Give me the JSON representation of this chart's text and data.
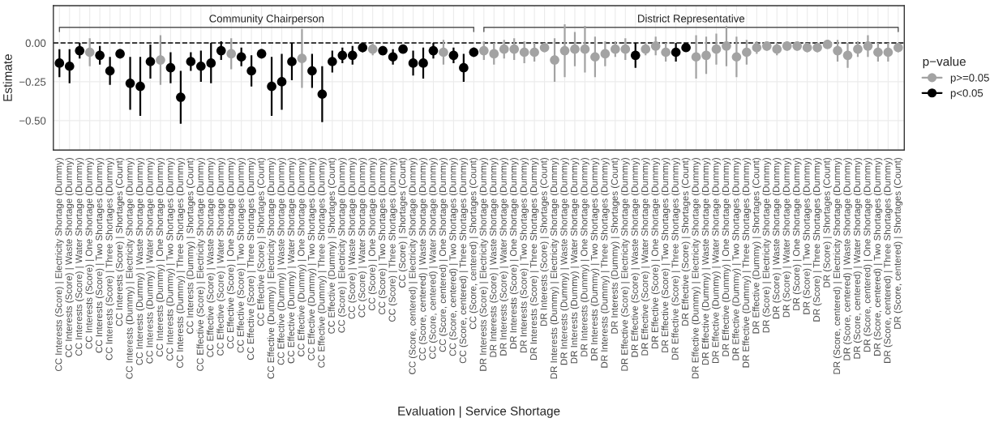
{
  "chart_data": {
    "type": "scatter",
    "xlabel": "Evaluation | Service Shortage",
    "ylabel": "Estimate",
    "legend_title": "p−value",
    "categories": [
      "CC Interests (Score) | Electricity Shortage (Dummy)",
      "CC Interests (Score) | Waste Shortage (Dummy)",
      "CC Interests (Score) | Water Shortage (Dummy)",
      "CC Interests (Score) | One Shortage (Dummy)",
      "CC Interests (Score) | Two Shortages (Dummy)",
      "CC Interests (Score) | Three Shortages (Dummy)",
      "CC Interests (Score) | Shortages (Count)",
      "CC Interests (Dummy) | Electricity Shortage (Dummy)",
      "CC Interests (Dummy) | Waste Shortage (Dummy)",
      "CC Interests (Dummy) | Water Shortage (Dummy)",
      "CC Interests (Dummy) | One Shortage (Dummy)",
      "CC Interests (Dummy) | Two Shortages (Dummy)",
      "CC Interests (Dummy) | Three Shortages (Dummy)",
      "CC Interests (Dummy) | Shortages (Count)",
      "CC Effective (Score) | Electricity Shortage (Dummy)",
      "CC Effective (Score) | Waste Shortage (Dummy)",
      "CC Effective (Score) | Water Shortage (Dummy)",
      "CC Effective (Score) | One Shortage (Dummy)",
      "CC Effective (Score) | Two Shortages (Dummy)",
      "CC Effective (Score) | Three Shortages (Dummy)",
      "CC Effective (Score) | Shortages (Count)",
      "CC Effective (Dummy) | Electricity Shortage (Dummy)",
      "CC Effective (Dummy) | Waste Shortage (Dummy)",
      "CC Effective (Dummy) | Water Shortage (Dummy)",
      "CC Effective (Dummy) | One Shortage (Dummy)",
      "CC Effective (Dummy) | Two Shortages (Dummy)",
      "CC Effective (Dummy) | Three Shortages (Dummy)",
      "CC Effective (Dummy) | Shortages (Count)",
      "CC (Score) | Electricity Shortage (Dummy)",
      "CC (Score) | Waste Shortage (Dummy)",
      "CC (Score) | Water Shortage (Dummy)",
      "CC (Score) | One Shortage (Dummy)",
      "CC (Score) | Two Shortages (Dummy)",
      "CC (Score) | Three Shortages (Dummy)",
      "CC (Score) | Shortages (Count)",
      "CC (Score, centered) | Electricity Shortage (Dummy)",
      "CC (Score, centered) | Waste Shortage (Dummy)",
      "CC (Score, centered) | Water Shortage (Dummy)",
      "CC (Score, centered) | One Shortage (Dummy)",
      "CC (Score, centered) | Two Shortages (Dummy)",
      "CC (Score, centered) | Three Shortages (Dummy)",
      "CC (Score, centered) | Shortages (Count)",
      "DR Interests (Score) | Electricity Shortage (Dummy)",
      "DR Interests (Score) | Waste Shortage (Dummy)",
      "DR Interests (Score) | Water Shortage (Dummy)",
      "DR Interests (Score) | One Shortage (Dummy)",
      "DR Interests (Score) | Two Shortages (Dummy)",
      "DR Interests (Score) | Three Shortages (Dummy)",
      "DR Interests (Score) | Shortages (Count)",
      "DR Interests (Dummy) | Electricity Shortage (Dummy)",
      "DR Interests (Dummy) | Waste Shortage (Dummy)",
      "DR Interests (Dummy) | Water Shortage (Dummy)",
      "DR Interests (Dummy) | One Shortage (Dummy)",
      "DR Interests (Dummy) | Two Shortages (Dummy)",
      "DR Interests (Dummy) | Three Shortages (Dummy)",
      "DR Interests (Dummy) | Shortages (Count)",
      "DR Effective (Score) | Electricity Shortage (Dummy)",
      "DR Effective (Score) | Waste Shortage (Dummy)",
      "DR Effective (Score) | Water Shortage (Dummy)",
      "DR Effective (Score) | One Shortage (Dummy)",
      "DR Effective (Score) | Two Shortages (Dummy)",
      "DR Effective (Score) | Three Shortages (Dummy)",
      "DR Effective (Score) | Shortages (Count)",
      "DR Effective (Dummy) | Electricity Shortage (Dummy)",
      "DR Effective (Dummy) | Waste Shortage (Dummy)",
      "DR Effective (Dummy) | Water Shortage (Dummy)",
      "DR Effective (Dummy) | One Shortage (Dummy)",
      "DR Effective (Dummy) | Two Shortages (Dummy)",
      "DR Effective (Dummy) | Three Shortages (Dummy)",
      "DR Effective (Dummy) | Shortages (Count)",
      "DR (Score) | Electricity Shortage (Dummy)",
      "DR (Score) | Waste Shortage (Dummy)",
      "DR (Score) | Water Shortage (Dummy)",
      "DR (Score) | One Shortage (Dummy)",
      "DR (Score) | Two Shortages (Dummy)",
      "DR (Score) | Three Shortages (Dummy)",
      "DR (Score) | Shortages (Count)",
      "DR (Score, centered) | Electricity Shortage (Dummy)",
      "DR (Score, centered) | Waste Shortage (Dummy)",
      "DR (Score, centered) | Water Shortage (Dummy)",
      "DR (Score, centered) | One Shortage (Dummy)",
      "DR (Score, centered) | Two Shortages (Dummy)",
      "DR (Score, centered) | Three Shortages (Dummy)",
      "DR (Score, centered) | Shortages (Count)"
    ],
    "series": [
      {
        "name": "p>=0.05",
        "color": "#a3a3a3",
        "values": [
          null,
          null,
          null,
          -0.06,
          null,
          null,
          null,
          null,
          null,
          null,
          -0.11,
          null,
          null,
          null,
          null,
          null,
          null,
          -0.07,
          null,
          null,
          null,
          null,
          null,
          null,
          -0.1,
          null,
          null,
          null,
          null,
          null,
          null,
          -0.04,
          null,
          null,
          null,
          null,
          null,
          null,
          -0.06,
          null,
          null,
          null,
          -0.05,
          -0.07,
          -0.04,
          -0.04,
          -0.06,
          -0.06,
          -0.03,
          -0.11,
          -0.05,
          -0.04,
          -0.04,
          -0.09,
          -0.07,
          -0.04,
          -0.04,
          null,
          -0.04,
          -0.02,
          -0.06,
          null,
          null,
          -0.09,
          -0.08,
          -0.04,
          -0.02,
          -0.09,
          -0.06,
          -0.03,
          -0.02,
          -0.04,
          -0.02,
          -0.02,
          -0.03,
          -0.03,
          -0.01,
          -0.05,
          -0.08,
          -0.04,
          -0.02,
          -0.06,
          -0.06,
          -0.03
        ],
        "errors": [
          null,
          null,
          null,
          0.09,
          null,
          null,
          null,
          null,
          null,
          null,
          0.16,
          null,
          null,
          null,
          null,
          null,
          null,
          0.1,
          null,
          null,
          null,
          null,
          null,
          null,
          0.19,
          null,
          null,
          null,
          null,
          null,
          null,
          0.04,
          null,
          null,
          null,
          null,
          null,
          null,
          0.08,
          null,
          null,
          null,
          0.06,
          0.07,
          0.06,
          0.07,
          0.07,
          0.06,
          0.03,
          0.14,
          0.17,
          0.11,
          0.15,
          0.13,
          0.08,
          0.05,
          0.07,
          null,
          0.04,
          0.06,
          0.06,
          null,
          null,
          0.14,
          0.12,
          0.1,
          0.13,
          0.13,
          0.08,
          0.04,
          0.03,
          0.04,
          0.03,
          0.03,
          0.03,
          0.03,
          0.01,
          0.07,
          0.08,
          0.05,
          0.07,
          0.06,
          0.06,
          0.03
        ]
      },
      {
        "name": "p<0.05",
        "color": "#000000",
        "values": [
          -0.13,
          -0.15,
          -0.05,
          null,
          -0.08,
          -0.18,
          -0.07,
          -0.26,
          -0.28,
          -0.12,
          null,
          -0.16,
          -0.35,
          -0.12,
          -0.15,
          -0.13,
          -0.05,
          null,
          -0.09,
          -0.18,
          -0.07,
          -0.28,
          -0.25,
          -0.12,
          null,
          -0.18,
          -0.33,
          -0.12,
          -0.08,
          -0.08,
          -0.03,
          null,
          -0.05,
          -0.09,
          -0.04,
          -0.13,
          -0.13,
          -0.05,
          null,
          -0.08,
          -0.16,
          -0.06,
          null,
          null,
          null,
          null,
          null,
          null,
          null,
          null,
          null,
          null,
          null,
          null,
          null,
          null,
          null,
          -0.08,
          null,
          null,
          null,
          -0.06,
          -0.03,
          null,
          null,
          null,
          null,
          null,
          null,
          null,
          null,
          null,
          null,
          null,
          null,
          null,
          null,
          null,
          null,
          null,
          null,
          null,
          null,
          null
        ],
        "errors": [
          0.09,
          0.11,
          0.05,
          null,
          0.06,
          0.09,
          0.03,
          0.17,
          0.19,
          0.11,
          null,
          0.1,
          0.17,
          0.06,
          0.1,
          0.13,
          0.06,
          null,
          0.06,
          0.1,
          0.03,
          0.19,
          0.18,
          0.12,
          null,
          0.11,
          0.18,
          0.07,
          0.05,
          0.06,
          0.03,
          null,
          0.02,
          0.05,
          0.02,
          0.08,
          0.1,
          0.05,
          null,
          0.05,
          0.09,
          0.03,
          null,
          null,
          null,
          null,
          null,
          null,
          null,
          null,
          null,
          null,
          null,
          null,
          null,
          null,
          null,
          0.08,
          null,
          null,
          null,
          0.06,
          0.02,
          null,
          null,
          null,
          null,
          null,
          null,
          null,
          null,
          null,
          null,
          null,
          null,
          null,
          null,
          null,
          null,
          null,
          null,
          null,
          null,
          null
        ]
      }
    ],
    "ylim": [
      -0.69,
      0.24
    ],
    "yticks": [
      {
        "value": 0,
        "label": "0.00"
      },
      {
        "value": -0.25,
        "label": "−0.25"
      },
      {
        "value": -0.5,
        "label": "−0.50"
      }
    ],
    "ref_lines": [
      {
        "axis": "y",
        "value": 0,
        "color": "#000000",
        "line_style": "dashed"
      }
    ],
    "annotations": [
      "Community Chairperson",
      "District Representative"
    ],
    "marker": "circle",
    "grid": true,
    "legend": "right"
  }
}
